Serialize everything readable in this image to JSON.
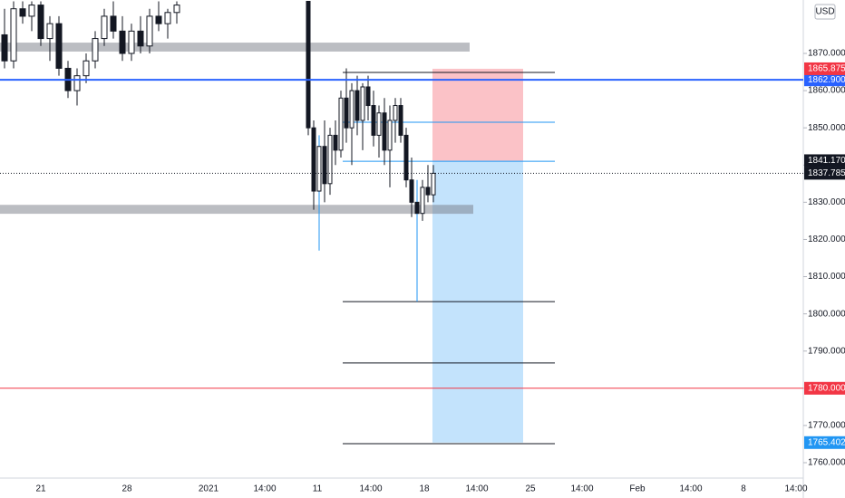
{
  "chart_data": {
    "type": "candlestick",
    "currency": "USD",
    "ylim": [
      1755.86,
      1884.36
    ],
    "yticks": [
      {
        "value": 1760,
        "label": "1760.000"
      },
      {
        "value": 1770,
        "label": "1770.000"
      },
      {
        "value": 1780,
        "label": "1780.000"
      },
      {
        "value": 1790,
        "label": "1790.000"
      },
      {
        "value": 1800,
        "label": "1800.000"
      },
      {
        "value": 1810,
        "label": "1810.000"
      },
      {
        "value": 1820,
        "label": "1820.000"
      },
      {
        "value": 1830,
        "label": "1830.000"
      },
      {
        "value": 1840,
        "label": "1840.000"
      },
      {
        "value": 1850,
        "label": "1850.000"
      },
      {
        "value": 1860,
        "label": "1860.000"
      },
      {
        "value": 1870,
        "label": "1870.000"
      }
    ],
    "xticks": [
      "21",
      "28",
      "2021",
      "14:00",
      "11",
      "14:00",
      "18",
      "14:00",
      "25",
      "14:00",
      "Feb",
      "14:00",
      "8",
      "14:00"
    ],
    "candles": {
      "open": [
        1875,
        1868,
        1882,
        1880,
        1883,
        1874,
        1878,
        1866,
        1860,
        1864,
        1868,
        1874,
        1880,
        1876,
        1870,
        1876,
        1872,
        1880,
        1878,
        1881,
        1884,
        1850,
        1833,
        1845,
        1835,
        1848,
        1844,
        1858,
        1850,
        1860,
        1852,
        1861,
        1856,
        1848,
        1854,
        1844,
        1852,
        1856,
        1848,
        1836,
        1830,
        1827,
        1834,
        1832
      ],
      "high": [
        1882,
        1884,
        1884,
        1884,
        1884,
        1880,
        1880,
        1868,
        1866,
        1870,
        1876,
        1882,
        1884,
        1880,
        1878,
        1880,
        1882,
        1884,
        1882,
        1884,
        1884,
        1852,
        1848,
        1852,
        1850,
        1852,
        1860,
        1866,
        1862,
        1864,
        1862,
        1864,
        1860,
        1856,
        1858,
        1856,
        1858,
        1858,
        1850,
        1842,
        1836,
        1836,
        1840,
        1840
      ],
      "low": [
        1866,
        1866,
        1878,
        1876,
        1872,
        1868,
        1864,
        1858,
        1856,
        1862,
        1866,
        1872,
        1874,
        1868,
        1868,
        1870,
        1870,
        1876,
        1874,
        1878,
        1848,
        1828,
        1817,
        1830,
        1832,
        1840,
        1842,
        1846,
        1840,
        1848,
        1844,
        1852,
        1845,
        1842,
        1840,
        1834,
        1846,
        1846,
        1834,
        1826,
        1803.3,
        1825,
        1830,
        1830
      ],
      "close": [
        1868,
        1882,
        1880,
        1883,
        1874,
        1878,
        1866,
        1860,
        1864,
        1868,
        1874,
        1880,
        1876,
        1870,
        1876,
        1872,
        1880,
        1878,
        1881,
        1883,
        1850,
        1833,
        1845,
        1835,
        1848,
        1844,
        1858,
        1850,
        1860,
        1852,
        1861,
        1856,
        1848,
        1854,
        1844,
        1852,
        1856,
        1848,
        1836,
        1830,
        1827,
        1834,
        1832,
        1837.785
      ]
    },
    "support_zones": [
      [
        1870.5,
        1872.9
      ],
      [
        1826.9,
        1829.3
      ]
    ],
    "price_lines": [
      {
        "price": {
          "value": 1862.9,
          "label": "1862.900"
        },
        "color": "#2962ff"
      },
      {
        "price": {
          "value": 1780,
          "label": "1780.000"
        },
        "color": "#f23645"
      }
    ],
    "position": {
      "stop": {
        "value": 1865.875,
        "label": "1865.875"
      },
      "entry": {
        "value": 1841.17,
        "label": "1841.170"
      },
      "target": {
        "value": 1765.402,
        "label": "1765.402"
      }
    },
    "last_price": {
      "value": 1837.785,
      "label": "1837.785"
    },
    "target_lines": [
      1864.9,
      1803.3,
      1786.8,
      1765.1
    ],
    "blue_lines": [
      1851.5,
      1841.0
    ]
  }
}
